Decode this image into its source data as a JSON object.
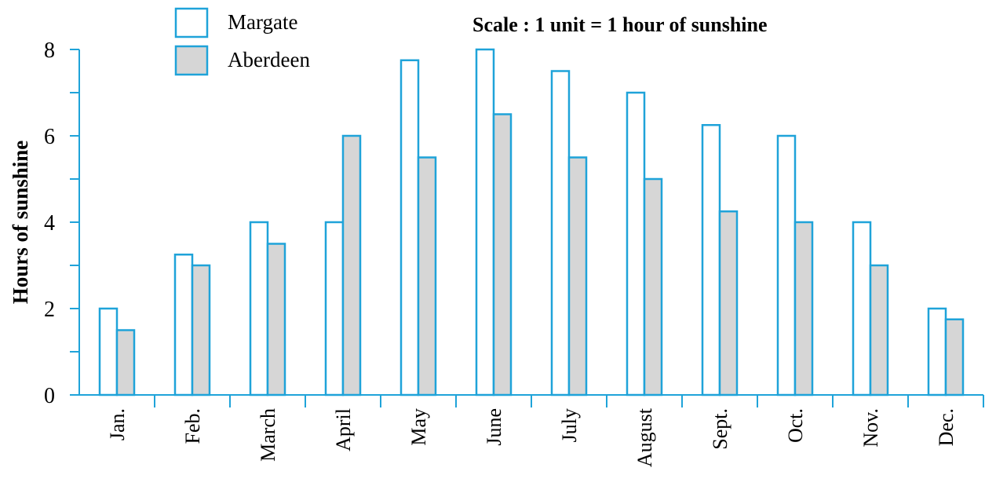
{
  "chart_data": {
    "type": "bar",
    "title": "",
    "xlabel": "",
    "ylabel": "Hours of sunshine",
    "ylim": [
      0,
      8
    ],
    "y_ticks": [
      "0",
      "2",
      "4",
      "6",
      "8"
    ],
    "categories": [
      "Jan.",
      "Feb.",
      "March",
      "April",
      "May",
      "June",
      "July",
      "August",
      "Sept.",
      "Oct.",
      "Nov.",
      "Dec."
    ],
    "series": [
      {
        "name": "Margate",
        "values": [
          2,
          3.25,
          4,
          4,
          7.75,
          8,
          7.5,
          7,
          6.25,
          6,
          4,
          2
        ]
      },
      {
        "name": "Aberdeen",
        "values": [
          1.5,
          3,
          3.5,
          6,
          5.5,
          6.5,
          5.5,
          5,
          4.25,
          4,
          3,
          1.75
        ]
      }
    ],
    "annotation": "Scale : 1 unit = 1 hour of sunshine",
    "legend_position": "top-left",
    "grid": false
  },
  "colors": {
    "axis": "#1fa3d9",
    "margate_fill": "#ffffff",
    "aberdeen_fill": "#d6d6d6",
    "bar_stroke": "#1fa3d9"
  }
}
